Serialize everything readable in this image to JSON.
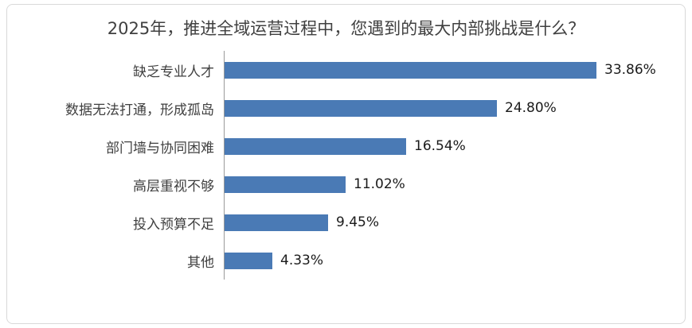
{
  "chart_data": {
    "type": "bar",
    "orientation": "horizontal",
    "title": "2025年，推进全域运营过程中，您遇到的最大内部挑战是什么？",
    "categories": [
      "缺乏专业人才",
      "数据无法打通，形成孤岛",
      "部门墙与协同困难",
      "高层重视不够",
      "投入预算不足",
      "其他"
    ],
    "values": [
      33.86,
      24.8,
      16.54,
      11.02,
      9.45,
      4.33
    ],
    "value_labels": [
      "33.86%",
      "24.80%",
      "16.54%",
      "11.02%",
      "9.45%",
      "4.33%"
    ],
    "xlabel": "",
    "ylabel": "",
    "xlim": [
      0,
      35
    ],
    "grid": false,
    "legend": false,
    "bar_color": "#4a7ab5",
    "axis_line_color": "#9a9a9a",
    "frame_border_color": "#d9d9d9"
  }
}
